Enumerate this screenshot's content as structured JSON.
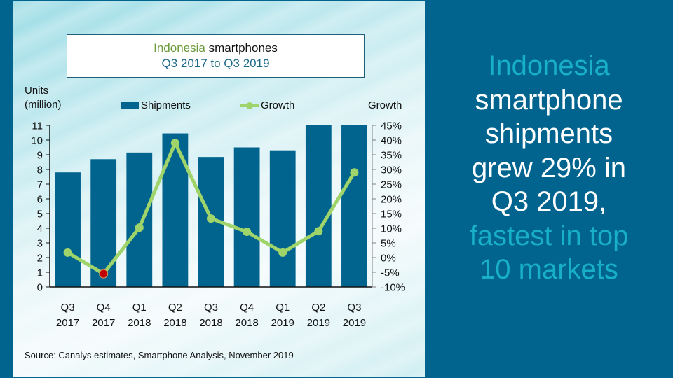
{
  "colors": {
    "background": "#00648f",
    "bar": "#00648f",
    "line": "#9fd46a",
    "highlight_point": "#c00000",
    "title_accent": "#6a9a3a",
    "subtitle": "#1f6a8a",
    "headline_accent": "#17b0c6",
    "headline_main": "#ffffff"
  },
  "title": {
    "accent": "Indonesia",
    "rest": " smartphones",
    "subtitle": "Q3 2017 to Q3 2019"
  },
  "left_axis_title": [
    "Units",
    "(million)"
  ],
  "right_axis_title": "Growth",
  "legend": {
    "bars": "Shipments",
    "line": "Growth"
  },
  "source": "Source: Canalys estimates, Smartphone Analysis, November 2019",
  "headline": [
    {
      "text": "Indonesia",
      "style": "accent"
    },
    {
      "text": "smartphone",
      "style": "main"
    },
    {
      "text": "shipments",
      "style": "main"
    },
    {
      "text": "grew 29% in",
      "style": "main"
    },
    {
      "text": "Q3 2019,",
      "style": "main"
    },
    {
      "text": "fastest in top",
      "style": "accent"
    },
    {
      "text": "10 markets",
      "style": "accent"
    }
  ],
  "chart_data": {
    "type": "bar",
    "title": "Indonesia smartphones, Q3 2017 to Q3 2019",
    "categories": [
      [
        "Q3",
        "2017"
      ],
      [
        "Q4",
        "2017"
      ],
      [
        "Q1",
        "2018"
      ],
      [
        "Q2",
        "2018"
      ],
      [
        "Q3",
        "2018"
      ],
      [
        "Q4",
        "2018"
      ],
      [
        "Q1",
        "2019"
      ],
      [
        "Q2",
        "2019"
      ],
      [
        "Q3",
        "2019"
      ]
    ],
    "series": [
      {
        "name": "Shipments",
        "type": "bar",
        "axis": "left",
        "unit": "million units",
        "values": [
          7.8,
          8.7,
          9.15,
          10.45,
          8.85,
          9.5,
          9.3,
          11.0,
          11.0
        ]
      },
      {
        "name": "Growth",
        "type": "line",
        "axis": "right",
        "unit": "%",
        "values": [
          1.7,
          -5.5,
          10.2,
          39.0,
          13.3,
          8.8,
          1.7,
          9.0,
          29.0
        ],
        "highlight_index": 1
      }
    ],
    "ylabel": "Units (million)",
    "ylim": [
      0,
      11
    ],
    "yticks": [
      "0",
      "1",
      "2",
      "3",
      "4",
      "5",
      "6",
      "7",
      "8",
      "9",
      "10",
      "11"
    ],
    "y2label": "Growth",
    "y2lim": [
      -10,
      45
    ],
    "y2ticks": [
      "-10%",
      "-5%",
      "0%",
      "5%",
      "10%",
      "15%",
      "20%",
      "25%",
      "30%",
      "35%",
      "40%",
      "45%"
    ],
    "legend_position": "top",
    "grid": false
  }
}
